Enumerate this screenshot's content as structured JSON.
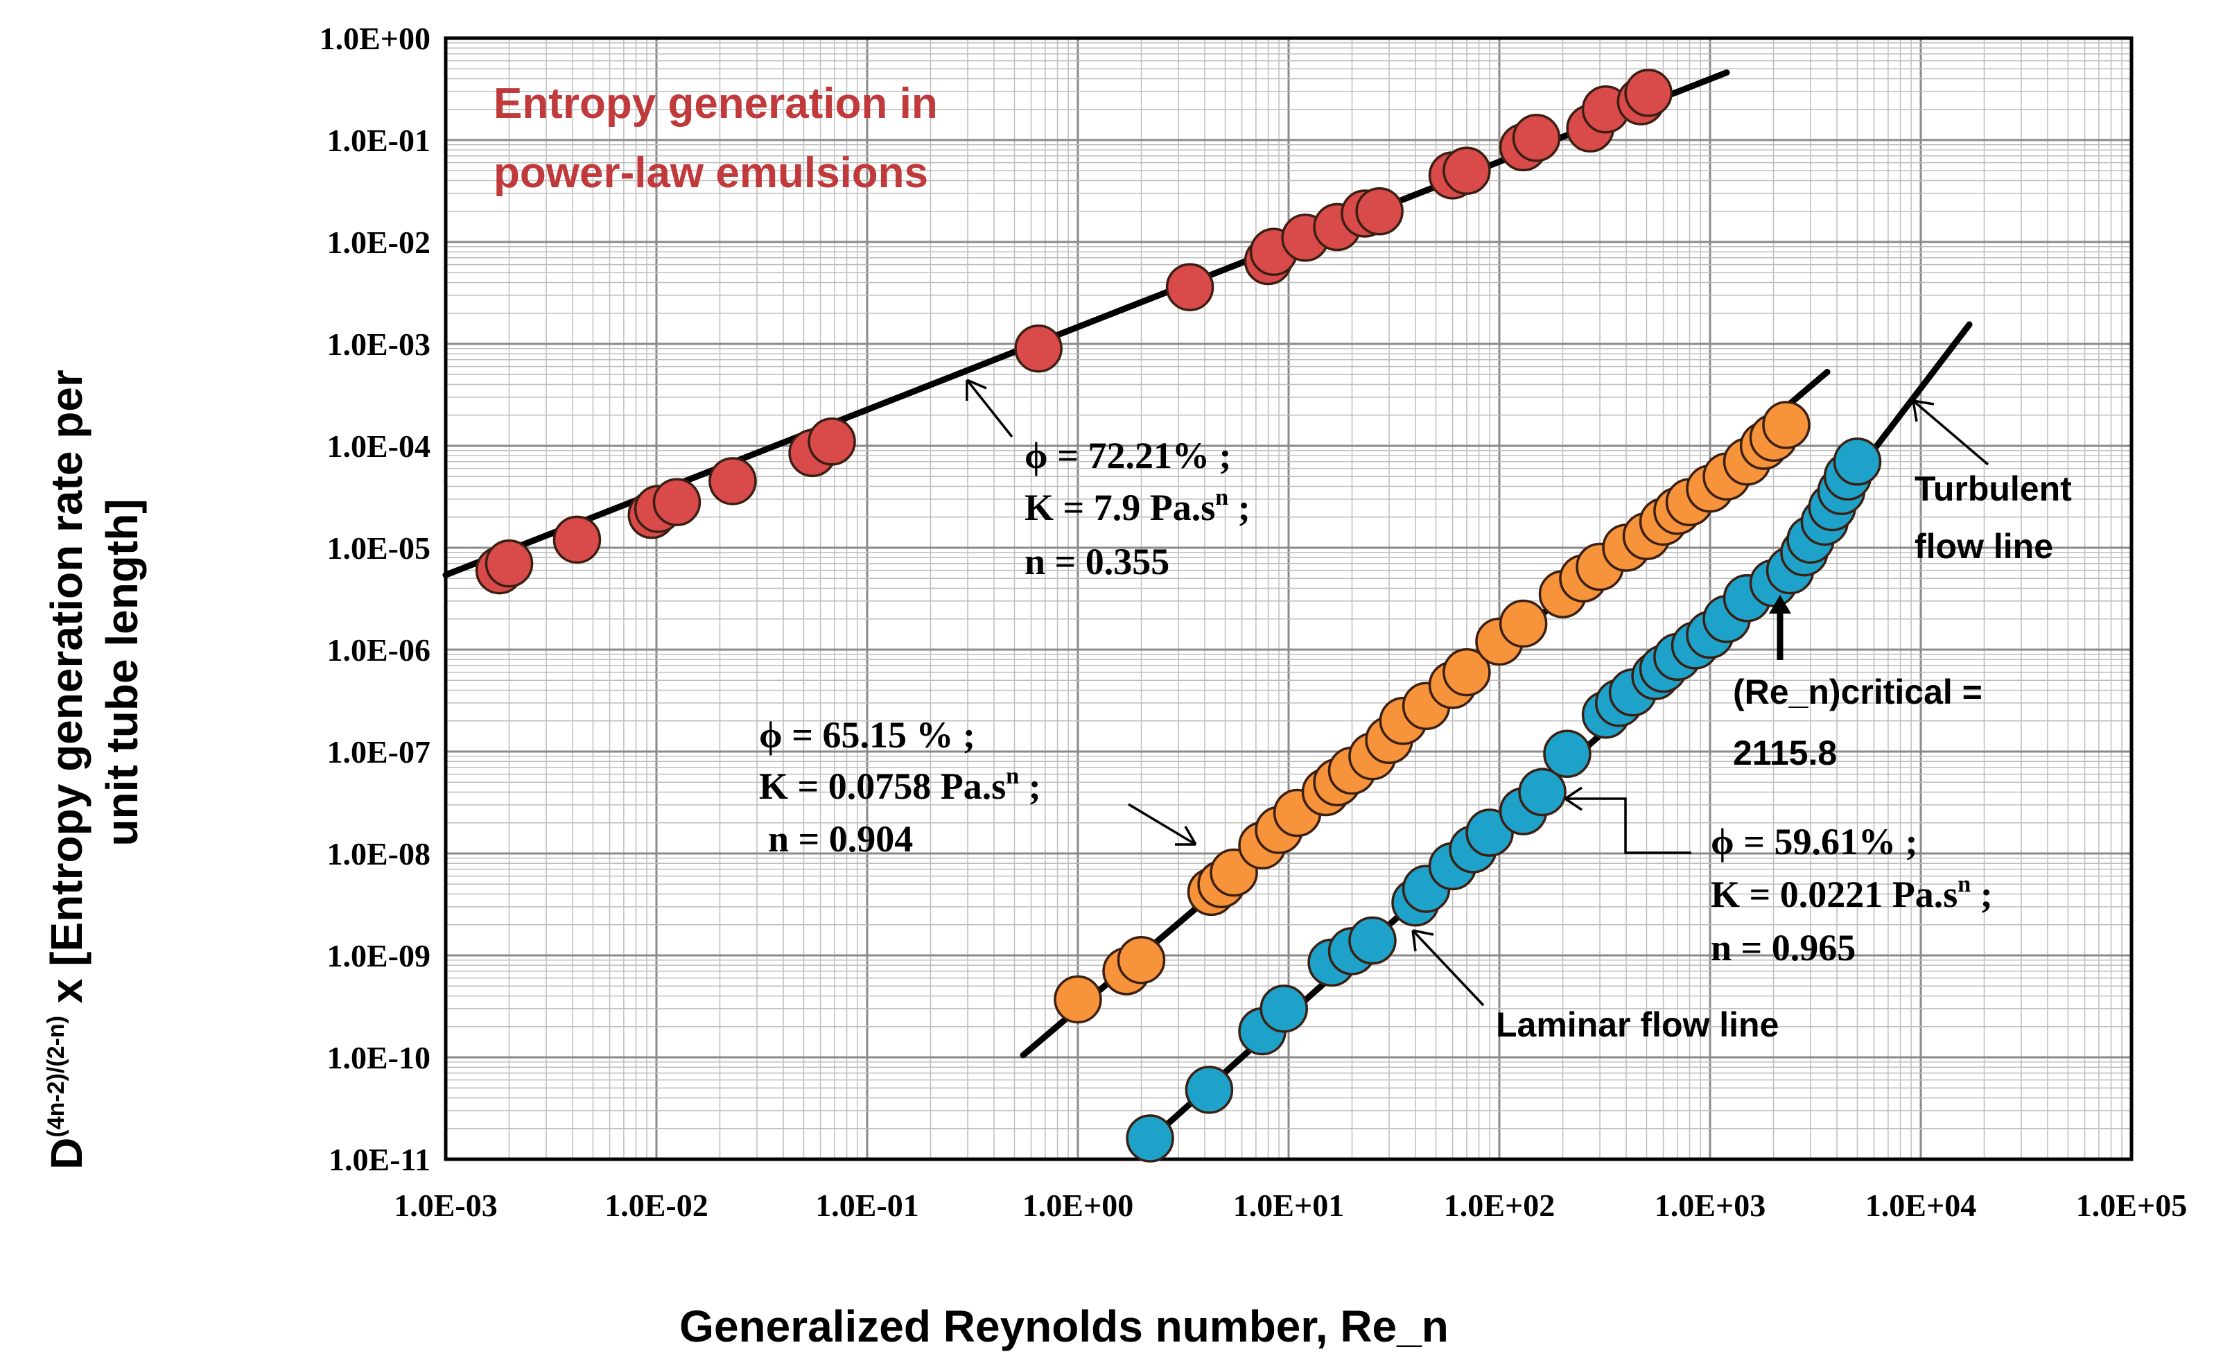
{
  "chart_data": {
    "type": "scatter",
    "title": "Entropy generation in power-law emulsions",
    "title_color": "#c0393b",
    "xlabel": "Generalized Reynolds number, Re_n",
    "ylabel_base": "D",
    "ylabel_sup": "(4n-2)/(2-n)",
    "ylabel_mid": " x  [Entropy generation rate per",
    "ylabel_line2": "unit tube length]",
    "xscale": "log",
    "yscale": "log",
    "xlim": [
      0.001,
      100000
    ],
    "ylim": [
      1e-11,
      1
    ],
    "grid": true,
    "x_ticks": [
      {
        "value": 0.001,
        "label": "1.0E-03"
      },
      {
        "value": 0.01,
        "label": "1.0E-02"
      },
      {
        "value": 0.1,
        "label": "1.0E-01"
      },
      {
        "value": 1,
        "label": "1.0E+00"
      },
      {
        "value": 10,
        "label": "1.0E+01"
      },
      {
        "value": 100,
        "label": "1.0E+02"
      },
      {
        "value": 1000,
        "label": "1.0E+03"
      },
      {
        "value": 10000,
        "label": "1.0E+04"
      },
      {
        "value": 100000,
        "label": "1.0E+05"
      }
    ],
    "y_ticks": [
      {
        "value": 1,
        "label": "1.0E+00"
      },
      {
        "value": 0.1,
        "label": "1.0E-01"
      },
      {
        "value": 0.01,
        "label": "1.0E-02"
      },
      {
        "value": 0.001,
        "label": "1.0E-03"
      },
      {
        "value": 0.0001,
        "label": "1.0E-04"
      },
      {
        "value": 1e-05,
        "label": "1.0E-05"
      },
      {
        "value": 1e-06,
        "label": "1.0E-06"
      },
      {
        "value": 1e-07,
        "label": "1.0E-07"
      },
      {
        "value": 1e-08,
        "label": "1.0E-08"
      },
      {
        "value": 1e-09,
        "label": "1.0E-09"
      },
      {
        "value": 1e-10,
        "label": "1.0E-10"
      },
      {
        "value": 1e-11,
        "label": "1.0E-11"
      }
    ],
    "series": [
      {
        "name": "phi = 72.21%",
        "color": "#d94a4a",
        "x": [
          0.0018,
          0.002,
          0.0042,
          0.0095,
          0.0102,
          0.0125,
          0.023,
          0.055,
          0.068,
          0.65,
          3.4,
          8.0,
          8.5,
          12,
          17,
          23,
          27,
          60,
          70,
          130,
          150,
          270,
          320,
          470,
          510
        ],
        "y": [
          6e-06,
          7e-06,
          1.2e-05,
          2.1e-05,
          2.4e-05,
          2.8e-05,
          4.5e-05,
          8.5e-05,
          0.00011,
          0.0009,
          0.0036,
          0.0065,
          0.008,
          0.011,
          0.014,
          0.019,
          0.02,
          0.045,
          0.05,
          0.085,
          0.105,
          0.13,
          0.2,
          0.24,
          0.29
        ]
      },
      {
        "name": "phi = 65.15 %",
        "color": "#f7933b",
        "x": [
          1.0,
          1.7,
          2.0,
          4.3,
          4.8,
          5.5,
          7.5,
          9.0,
          11,
          15,
          17,
          20,
          25,
          30,
          35,
          45,
          60,
          70,
          100,
          130,
          200,
          250,
          300,
          400,
          500,
          600,
          700,
          800,
          1000,
          1200,
          1500,
          1800,
          2000,
          2300
        ],
        "y": [
          3.7e-10,
          7e-10,
          9e-10,
          4.2e-09,
          5e-09,
          6.5e-09,
          1.2e-08,
          1.7e-08,
          2.5e-08,
          4e-08,
          5e-08,
          6.5e-08,
          9e-08,
          1.3e-07,
          2e-07,
          2.8e-07,
          4.5e-07,
          6e-07,
          1.2e-06,
          1.8e-06,
          3.5e-06,
          5e-06,
          6.5e-06,
          1e-05,
          1.3e-05,
          1.8e-05,
          2.3e-05,
          2.8e-05,
          3.8e-05,
          5e-05,
          7e-05,
          0.0001,
          0.00012,
          0.00016
        ]
      },
      {
        "name": "phi = 59.61%",
        "color": "#1ea2c9",
        "x": [
          2.2,
          4.2,
          7.5,
          9.5,
          16,
          20,
          25,
          40,
          45,
          60,
          75,
          90,
          130,
          160,
          210,
          320,
          370,
          430,
          550,
          600,
          700,
          850,
          1000,
          1200,
          1500,
          2000,
          2400,
          2800,
          3000,
          3500,
          3800,
          4200,
          4500,
          5000
        ],
        "y": [
          1.6e-11,
          4.8e-11,
          1.8e-10,
          3e-10,
          8.5e-10,
          1.1e-09,
          1.4e-09,
          3.3e-09,
          4.5e-09,
          7.5e-09,
          1.1e-08,
          1.6e-08,
          2.6e-08,
          4e-08,
          9.5e-08,
          2.3e-07,
          3e-07,
          3.8e-07,
          5.5e-07,
          6.5e-07,
          8.5e-07,
          1.1e-06,
          1.4e-06,
          2e-06,
          3.2e-06,
          4.5e-06,
          6e-06,
          9e-06,
          1.2e-05,
          1.8e-05,
          2.5e-05,
          3.6e-05,
          5e-05,
          7e-05
        ]
      }
    ],
    "lines": [
      {
        "name": "phi = 72.21% fit",
        "x": [
          0.001,
          1200
        ],
        "y": [
          5.4e-06,
          0.46
        ]
      },
      {
        "name": "phi = 65.15 % fit",
        "x": [
          0.55,
          3600
        ],
        "y": [
          1.05e-10,
          0.00053
        ]
      },
      {
        "name": "laminar flow line",
        "x": [
          2.0,
          2115.8
        ],
        "y": [
          1.3e-11,
          5.45e-06
        ]
      },
      {
        "name": "turbulent flow line",
        "x": [
          2115.8,
          17000
        ],
        "y": [
          5.45e-06,
          0.00155
        ]
      }
    ],
    "annotations": {
      "a72": {
        "line1": "ϕ = 72.21% ;",
        "line2_main": "K = 7.9 Pa.s",
        "line2_sup": "n",
        "line2_end": "  ;",
        "line3": "n = 0.355"
      },
      "a65": {
        "line1": "ϕ = 65.15 % ;",
        "line2_main": "K = 0.0758 Pa.s",
        "line2_sup": "n",
        "line2_end": " ;",
        "line3": "n = 0.904"
      },
      "a59": {
        "line1": "ϕ = 59.61% ;",
        "line2_main": "K = 0.0221 Pa.s",
        "line2_sup": "n",
        "line2_end": "  ;",
        "line3": "n = 0.965"
      },
      "turbulent": {
        "line1": "Turbulent",
        "line2": "flow line"
      },
      "laminar": "Laminar flow line",
      "critical": {
        "line1": "(Re_n)critical =",
        "line2": "2115.8"
      }
    }
  }
}
